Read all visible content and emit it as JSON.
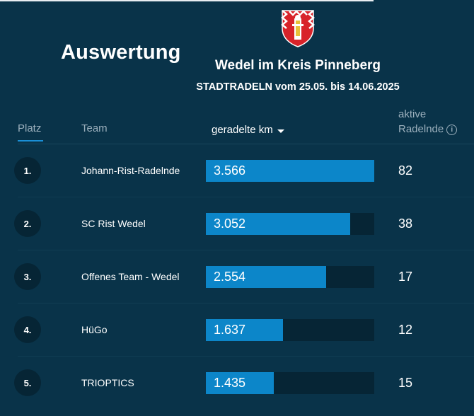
{
  "header": {
    "title": "Auswertung",
    "subtitle": "Wedel im Kreis Pinneberg",
    "period": "STADTRADELN vom 25.05. bis 14.06.2025",
    "crest_icon": "wedel-coat-of-arms"
  },
  "columns": {
    "rank": "Platz",
    "team": "Team",
    "km": "geradelte km",
    "riders_line1": "aktive",
    "riders_line2": "Radelnde",
    "info_icon": "info-icon",
    "sort_icon": "caret-down-icon"
  },
  "colors": {
    "bar": "#0c86c9",
    "track": "#062535",
    "background": "#093349",
    "crest_red": "#d8232a"
  },
  "rows": [
    {
      "rank": "1.",
      "team": "Johann-Rist-Radelnde",
      "km": "3.566",
      "km_value": 3566,
      "riders": "82"
    },
    {
      "rank": "2.",
      "team": "SC Rist Wedel",
      "km": "3.052",
      "km_value": 3052,
      "riders": "38"
    },
    {
      "rank": "3.",
      "team": "Offenes Team - Wedel",
      "km": "2.554",
      "km_value": 2554,
      "riders": "17"
    },
    {
      "rank": "4.",
      "team": "HüGo",
      "km": "1.637",
      "km_value": 1637,
      "riders": "12"
    },
    {
      "rank": "5.",
      "team": "TRIOPTICS",
      "km": "1.435",
      "km_value": 1435,
      "riders": "15"
    }
  ]
}
